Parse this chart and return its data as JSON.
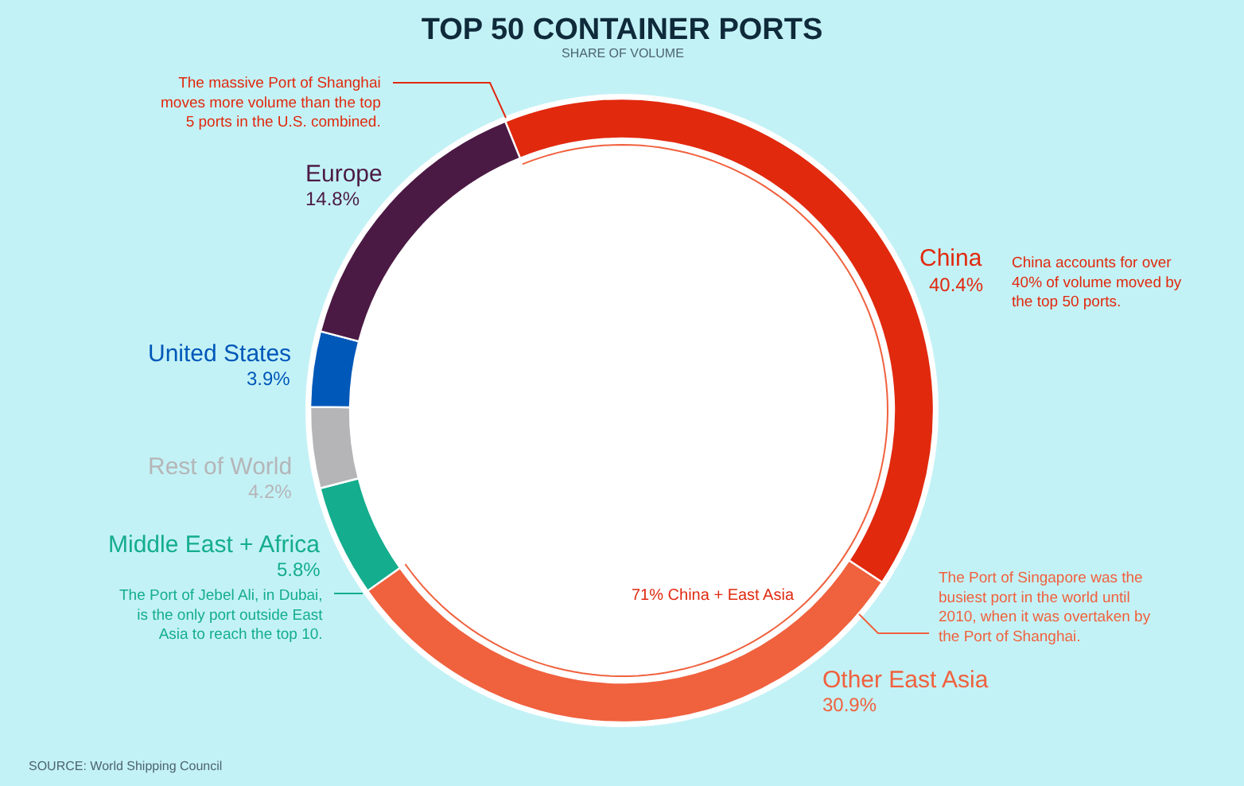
{
  "chart_data": {
    "type": "donut",
    "title": "TOP 50 CONTAINER PORTS",
    "subtitle": "SHARE OF VOLUME",
    "categories": [
      "China",
      "Other East Asia",
      "Middle East + Africa",
      "Rest of World",
      "United States",
      "Europe"
    ],
    "values": [
      40.4,
      30.9,
      5.8,
      4.2,
      3.9,
      14.8
    ],
    "value_labels": [
      "40.4%",
      "30.9%",
      "5.8%",
      "4.2%",
      "3.9%",
      "14.8%"
    ],
    "colors": [
      "#e1290e",
      "#f0613e",
      "#14ad8e",
      "#b5b5b8",
      "#0058b9",
      "#4b1a44"
    ],
    "legend": false,
    "annotations": [
      "The massive Port of Shanghai\nmoves more volume than the top\n5 ports in the U.S. combined.",
      "China accounts for over\n40% of volume moved by\nthe top 50 ports.",
      "The Port of Singapore was the\nbusiest port in the world until\n2010, when it was overtaken by\nthe Port of Shanghai.",
      "The Port of Jebel Ali, in Dubai,\nis the only port outside East\nAsia to reach the top 10.",
      "71% China + East Asia",
      "SOURCE: World Shipping Council"
    ]
  }
}
